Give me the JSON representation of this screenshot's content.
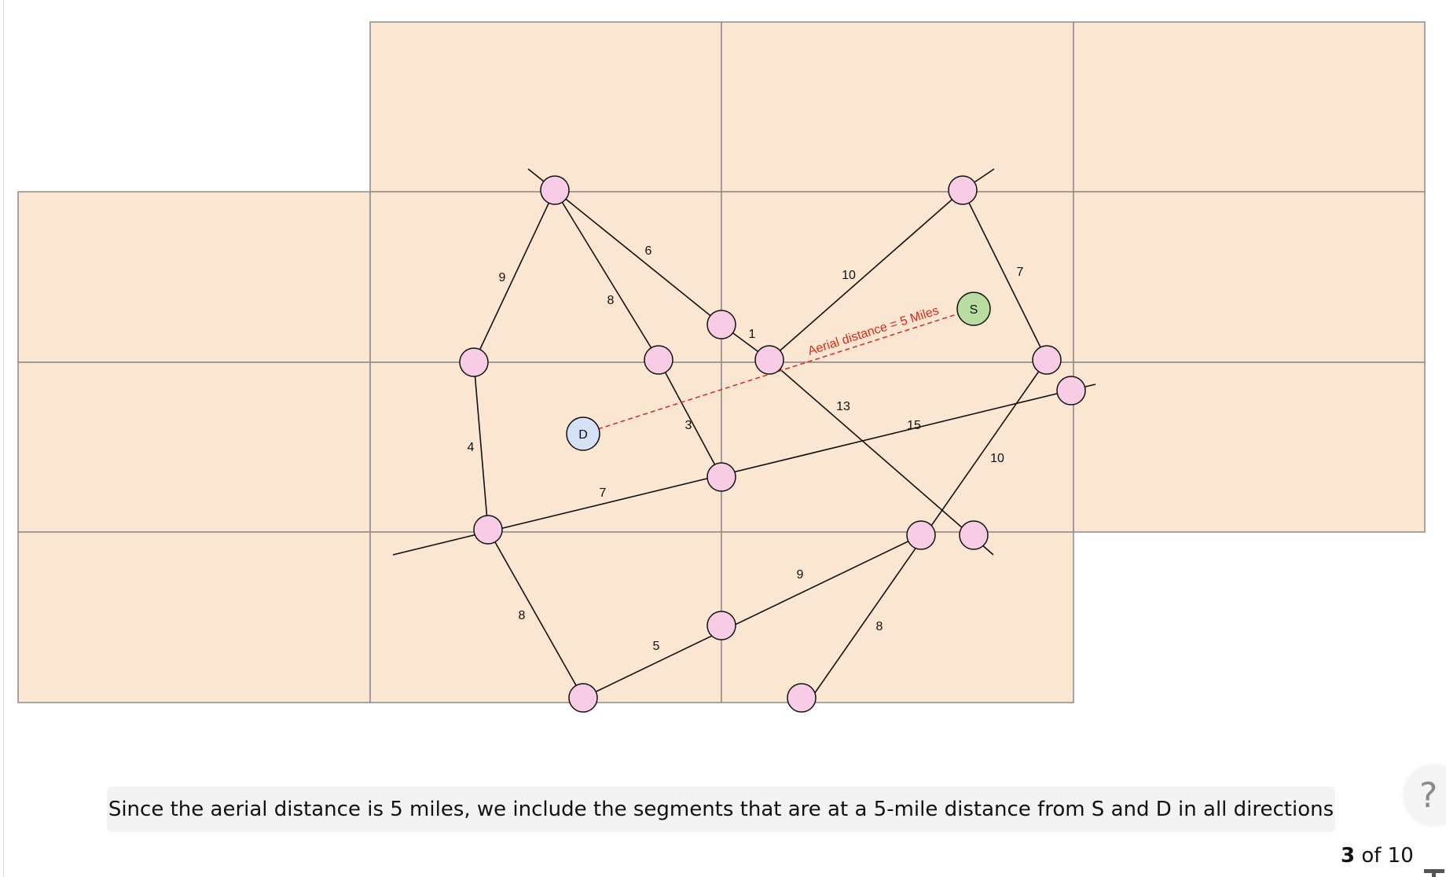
{
  "diagram": {
    "source_label": "S",
    "destination_label": "D",
    "aerial_label": "Aerial distance = 5 Miles",
    "edge_weights": [
      "6",
      "8",
      "9",
      "1",
      "10",
      "7",
      "4",
      "3",
      "7",
      "13",
      "15",
      "10",
      "8",
      "5",
      "9",
      "8"
    ],
    "colors": {
      "block_fill": "#fae6d1",
      "block_stroke": "#8c8c8c",
      "node_fill": "#f8cce4",
      "source_fill": "#b9dca0",
      "destination_fill": "#d5e1f4",
      "aerial_line": "#e0281b",
      "road": "#111111"
    }
  },
  "caption": "Since the aerial distance is 5 miles, we include the segments that are at a 5-mile distance from S and D in all directions",
  "pager": {
    "current": "3",
    "suffix": "of 10"
  },
  "help": {
    "label": "?"
  }
}
